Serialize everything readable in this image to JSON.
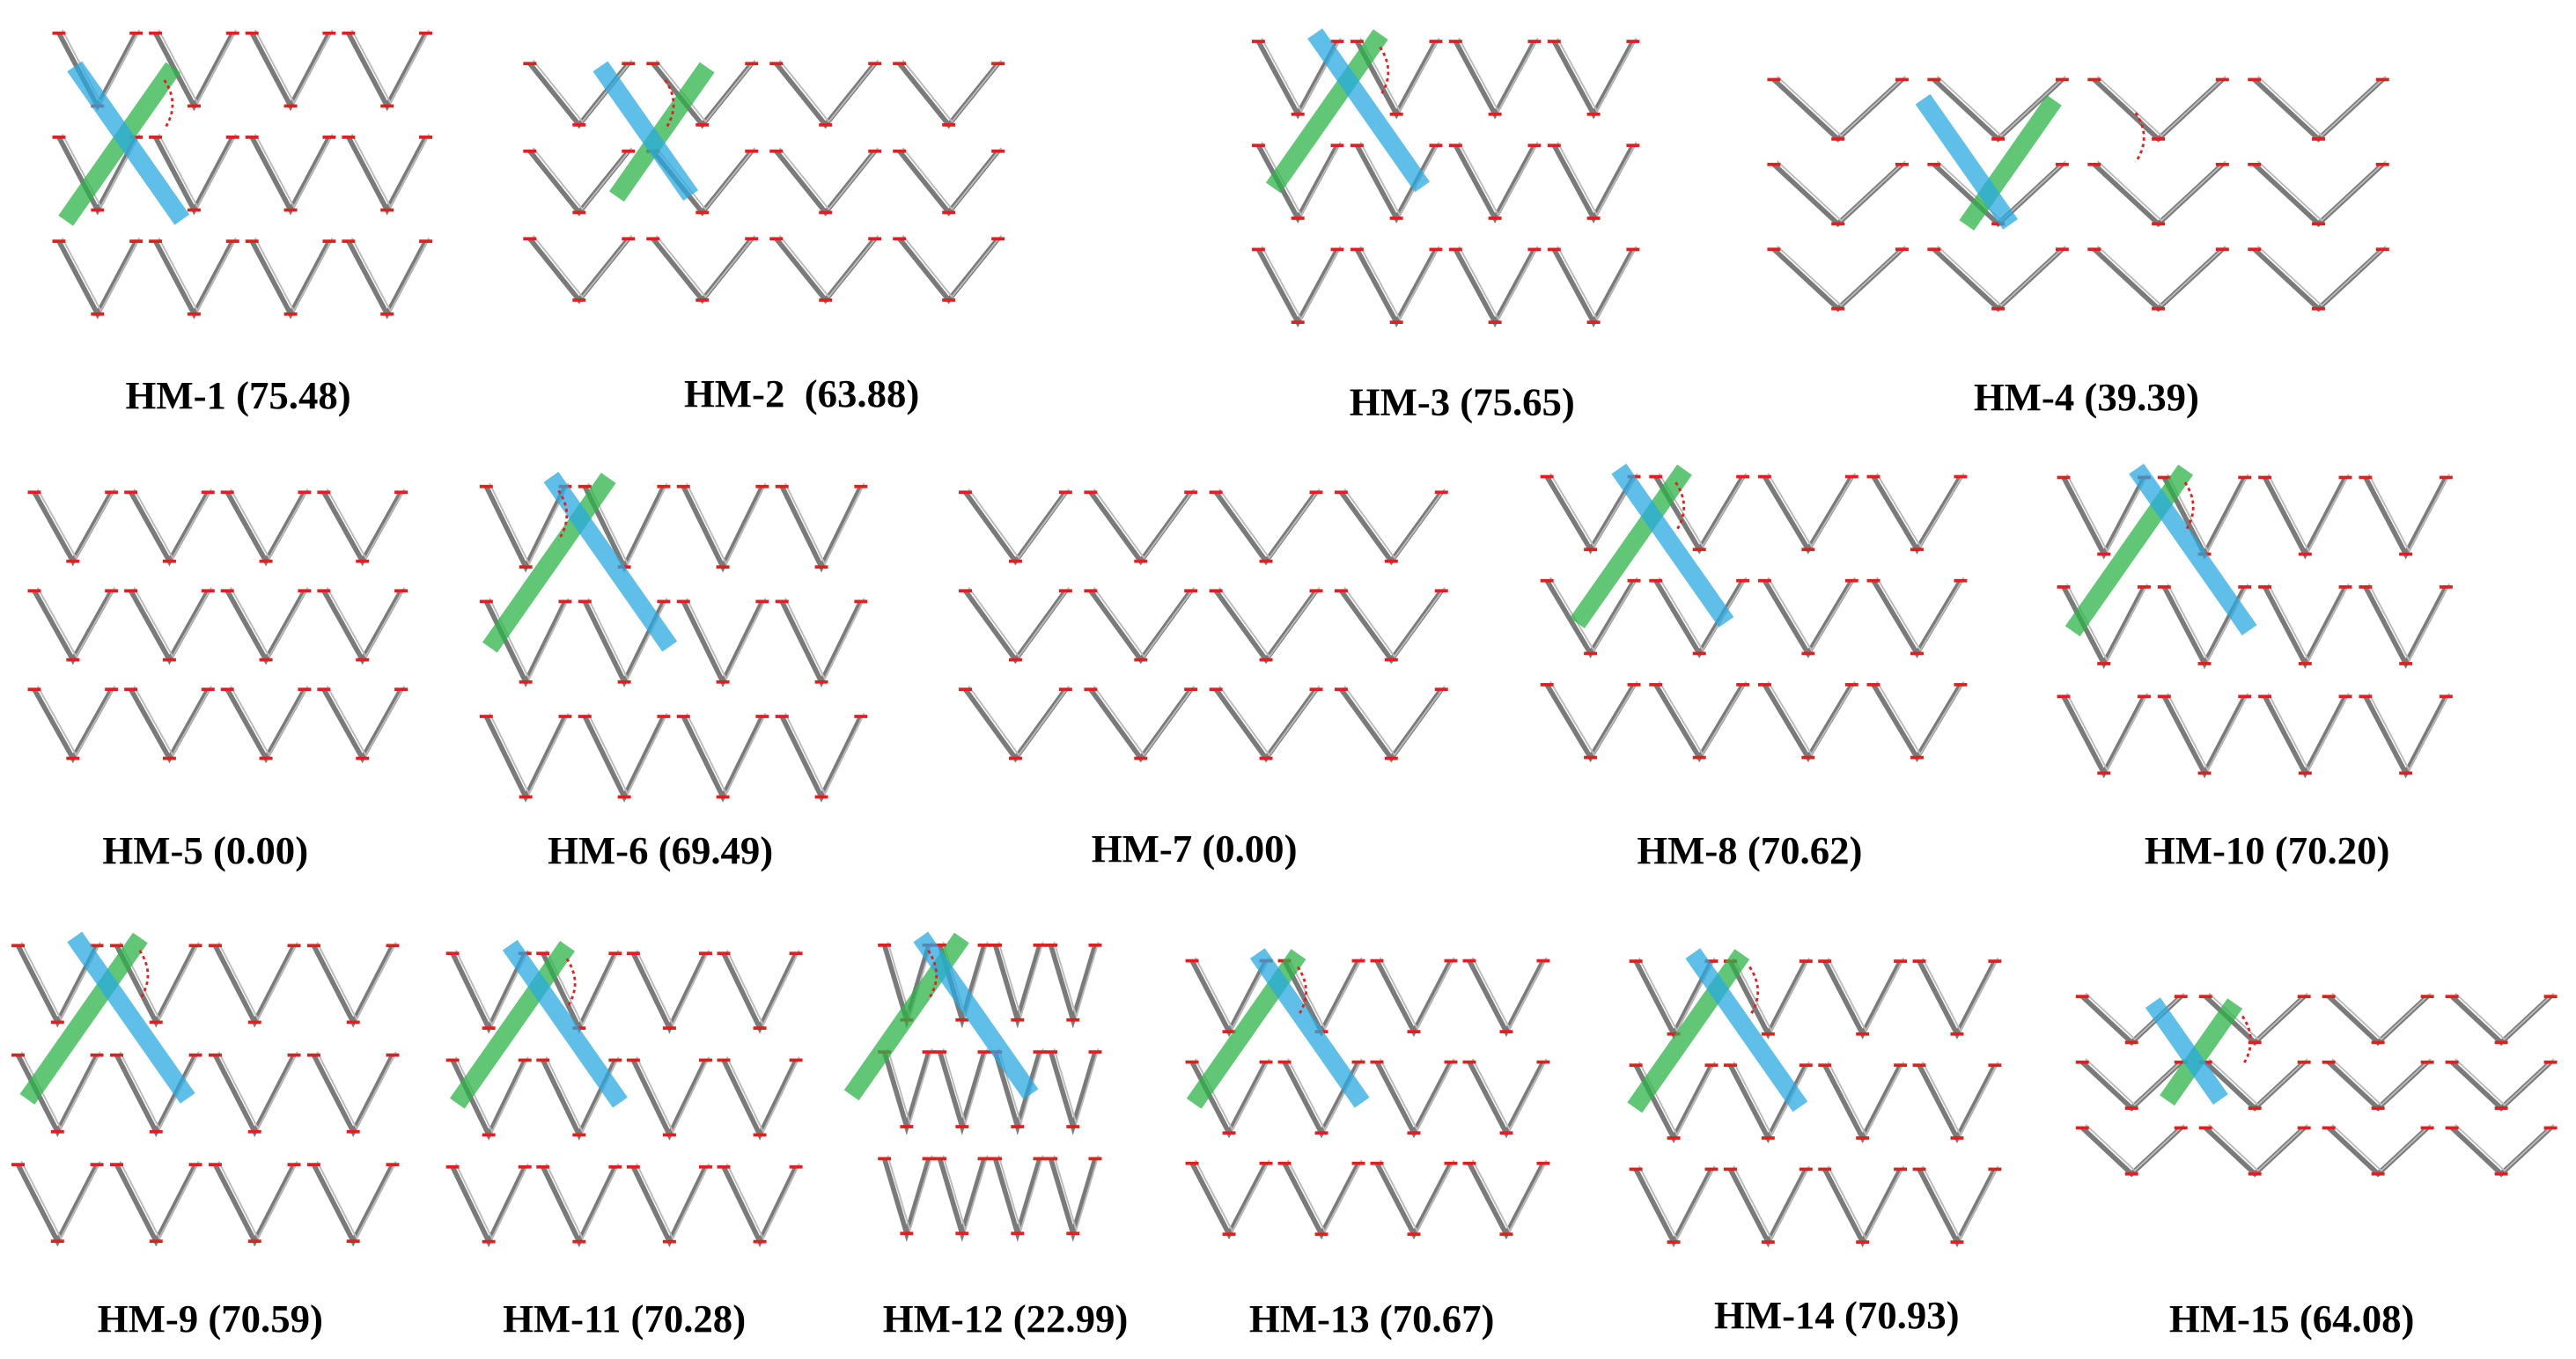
{
  "panels": [
    {
      "label": "HM-1 (75.48)"
    },
    {
      "label": "HM-2  (63.88)"
    },
    {
      "label": "HM-3 (75.65)"
    },
    {
      "label": "HM-4 (39.39)"
    },
    {
      "label": "HM-5 (0.00)"
    },
    {
      "label": "HM-6 (69.49)"
    },
    {
      "label": "HM-7 (0.00)"
    },
    {
      "label": "HM-8 (70.62)"
    },
    {
      "label": "HM-10 (70.20)"
    },
    {
      "label": "HM-9 (70.59)"
    },
    {
      "label": "HM-11 (70.28)"
    },
    {
      "label": "HM-12 (22.99)"
    },
    {
      "label": "HM-13 (70.67)"
    },
    {
      "label": "HM-14 (70.93)"
    },
    {
      "label": "HM-15 (64.08)"
    }
  ]
}
